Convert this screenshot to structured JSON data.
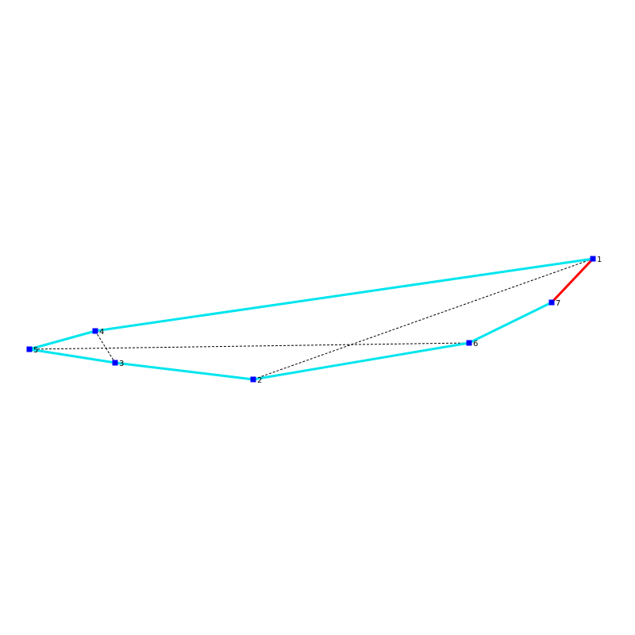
{
  "diagram": {
    "type": "polygon-triangulation",
    "colors": {
      "background": "#ffffff",
      "boundary_edge": "#00e5ee",
      "highlighted_edge": "#ff0000",
      "diagonal": "#000000",
      "vertex": "#0000ff",
      "label": "#000000"
    },
    "vertices": [
      {
        "id": "1",
        "label": "1"
      },
      {
        "id": "2",
        "label": "2"
      },
      {
        "id": "3",
        "label": "3"
      },
      {
        "id": "4",
        "label": "4"
      },
      {
        "id": "5",
        "label": "5"
      },
      {
        "id": "6",
        "label": "6"
      },
      {
        "id": "7",
        "label": "7"
      }
    ],
    "boundary_edges": [
      {
        "from": "1",
        "to": "4"
      },
      {
        "from": "4",
        "to": "5"
      },
      {
        "from": "5",
        "to": "3"
      },
      {
        "from": "3",
        "to": "2"
      },
      {
        "from": "2",
        "to": "6"
      },
      {
        "from": "6",
        "to": "7"
      }
    ],
    "highlighted_edges": [
      {
        "from": "7",
        "to": "1"
      }
    ],
    "diagonals": [
      {
        "from": "1",
        "to": "2"
      },
      {
        "from": "5",
        "to": "6"
      },
      {
        "from": "4",
        "to": "3"
      }
    ]
  }
}
